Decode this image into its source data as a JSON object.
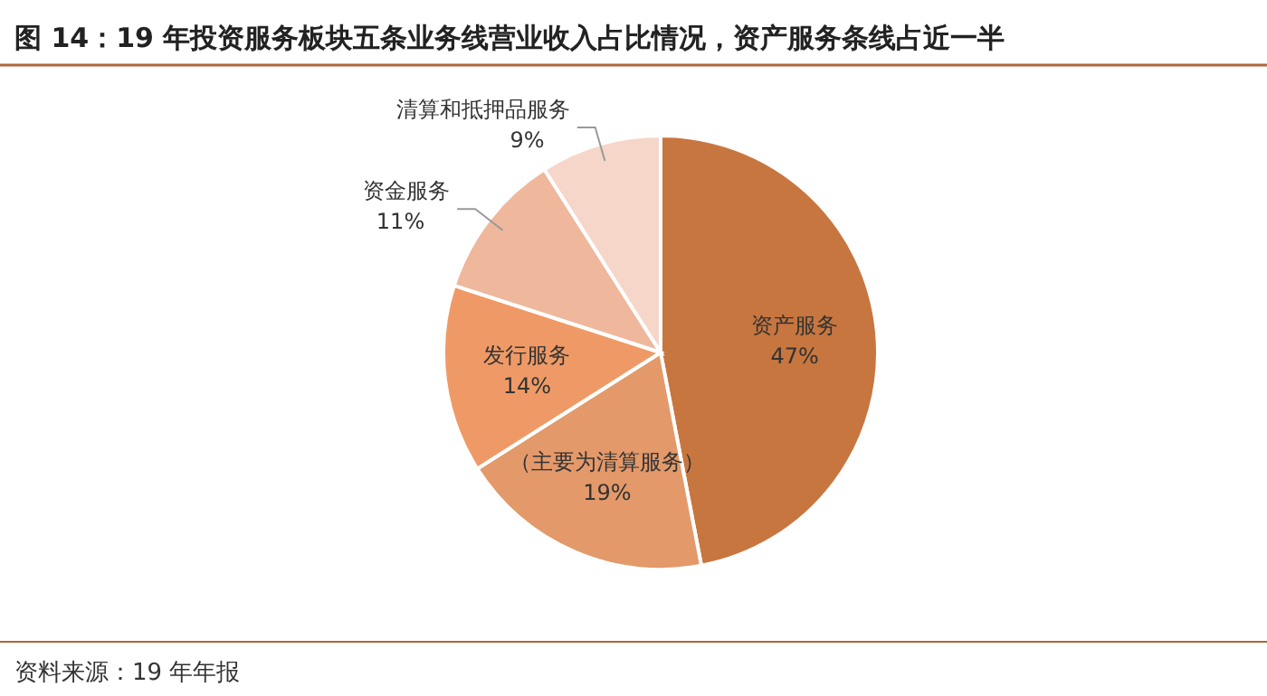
{
  "chart_data": {
    "type": "pie",
    "title": "图 14：19 年投资服务板块五条业务线营业收入占比情况，资产服务条线占近一半",
    "categories": [
      "资产服务",
      "（主要为清算服务）",
      "发行服务",
      "资金服务",
      "清算和抵押品服务"
    ],
    "values": [
      47,
      19,
      14,
      11,
      9
    ],
    "colors": [
      "#c8763f",
      "#e3996a",
      "#ef9a66",
      "#efb79c",
      "#f6d6c9"
    ],
    "value_labels": [
      "47%",
      "19%",
      "14%",
      "11%",
      "9%"
    ],
    "annotations": [
      "资料来源：19 年年报"
    ]
  }
}
